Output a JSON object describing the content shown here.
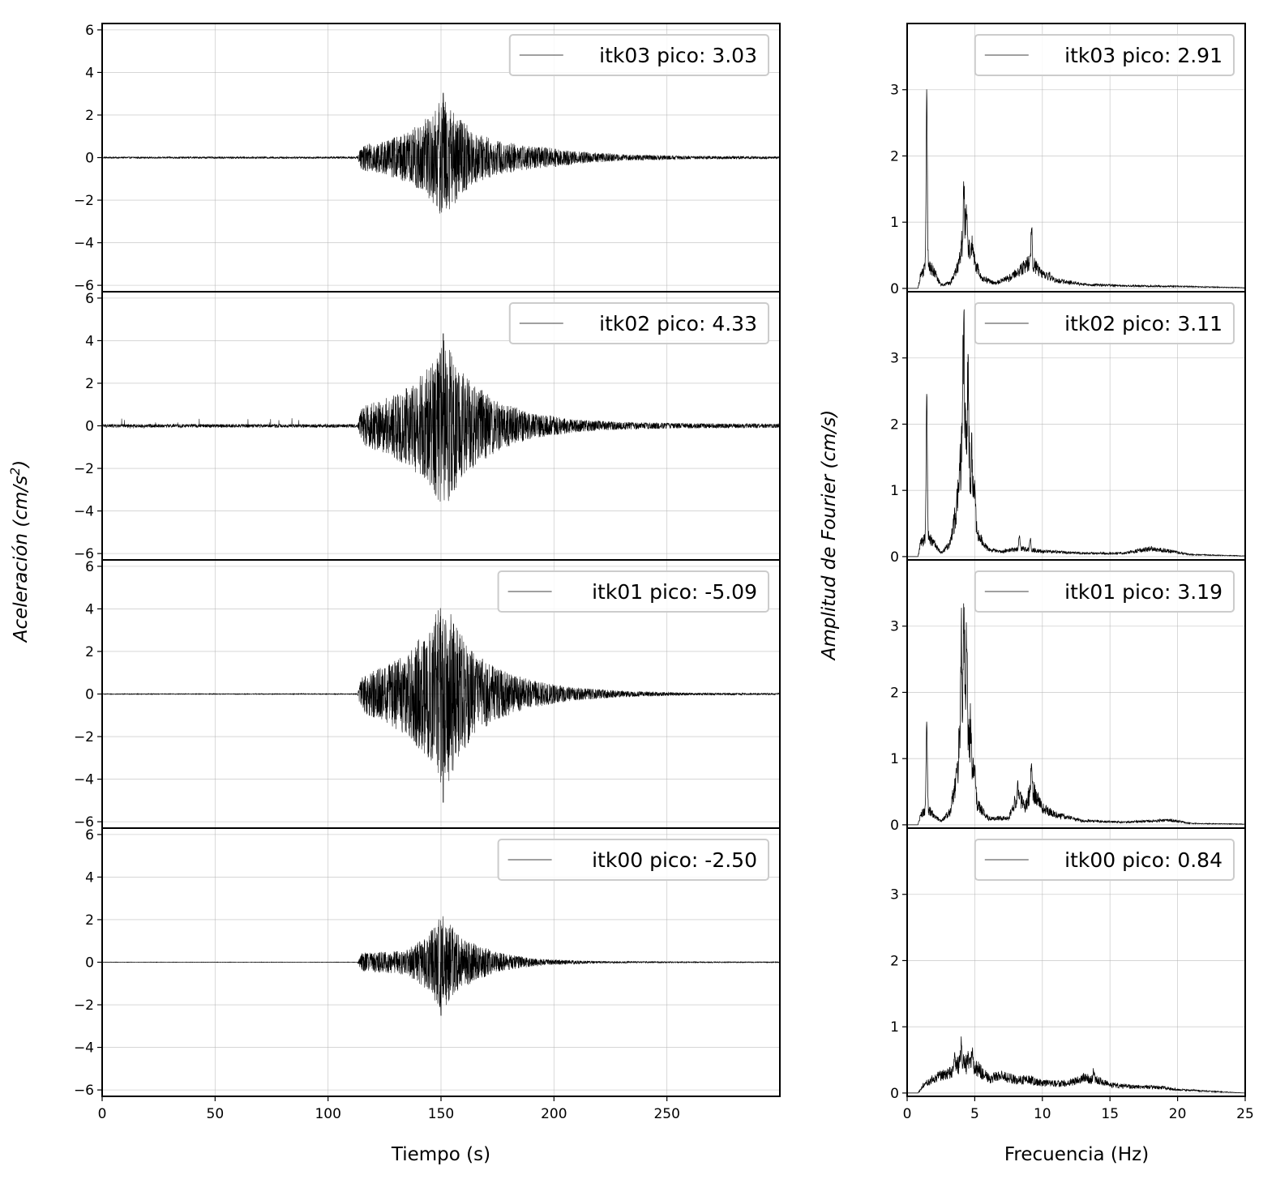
{
  "chart_data": [
    {
      "type": "line",
      "panel": "left",
      "xlabel": "Tiempo (s)",
      "ylabel_prefix": "Aceleración (cm/s",
      "ylabel_sup": "2",
      "ylabel_suffix": ")",
      "xlim": [
        0,
        300
      ],
      "ylim": [
        -6.3,
        6.3
      ],
      "xticks": [
        0,
        50,
        100,
        150,
        200,
        250
      ],
      "xtick_labels": [
        "0",
        "50",
        "100",
        "150",
        "200",
        "250"
      ],
      "yticks": [
        -6,
        -4,
        -2,
        0,
        2,
        4,
        6
      ],
      "ytick_labels": [
        "−6",
        "−4",
        "−2",
        "0",
        "2",
        "4",
        "6"
      ],
      "grid": true,
      "series": [
        {
          "name": "itk03",
          "legend": "itk03 pico: 3.03",
          "peak": 3.03,
          "onset_s": 115,
          "peak_time_s": 151,
          "coda_end_s": 300,
          "envelope": [
            [
              0,
              0.04
            ],
            [
              113,
              0.05
            ],
            [
              115,
              0.6
            ],
            [
              125,
              0.8
            ],
            [
              135,
              1.2
            ],
            [
              145,
              2.0
            ],
            [
              151,
              2.9
            ],
            [
              158,
              1.9
            ],
            [
              165,
              1.2
            ],
            [
              175,
              0.8
            ],
            [
              190,
              0.55
            ],
            [
              200,
              0.45
            ],
            [
              210,
              0.3
            ],
            [
              230,
              0.15
            ],
            [
              260,
              0.08
            ],
            [
              300,
              0.06
            ]
          ]
        },
        {
          "name": "itk02",
          "legend": "itk02 pico: 4.33",
          "peak": 4.33,
          "onset_s": 115,
          "peak_time_s": 151,
          "coda_end_s": 300,
          "envelope": [
            [
              0,
              0.08
            ],
            [
              113,
              0.08
            ],
            [
              115,
              0.9
            ],
            [
              125,
              1.3
            ],
            [
              135,
              1.9
            ],
            [
              145,
              2.8
            ],
            [
              151,
              4.2
            ],
            [
              158,
              2.7
            ],
            [
              165,
              1.9
            ],
            [
              175,
              1.2
            ],
            [
              190,
              0.6
            ],
            [
              200,
              0.45
            ],
            [
              210,
              0.3
            ],
            [
              230,
              0.18
            ],
            [
              260,
              0.12
            ],
            [
              300,
              0.1
            ]
          ]
        },
        {
          "name": "itk01",
          "legend": "itk01 pico: -5.09",
          "peak": -5.09,
          "onset_s": 115,
          "peak_time_s": 151,
          "coda_end_s": 300,
          "envelope": [
            [
              0,
              0.02
            ],
            [
              113,
              0.02
            ],
            [
              115,
              0.9
            ],
            [
              125,
              1.3
            ],
            [
              135,
              2.0
            ],
            [
              145,
              3.1
            ],
            [
              151,
              4.7
            ],
            [
              158,
              3.0
            ],
            [
              165,
              1.9
            ],
            [
              175,
              1.2
            ],
            [
              190,
              0.65
            ],
            [
              200,
              0.45
            ],
            [
              210,
              0.3
            ],
            [
              230,
              0.15
            ],
            [
              260,
              0.06
            ],
            [
              300,
              0.04
            ]
          ]
        },
        {
          "name": "itk00",
          "legend": "itk00 pico: -2.50",
          "peak": -2.5,
          "onset_s": 115,
          "peak_time_s": 150,
          "coda_end_s": 300,
          "envelope": [
            [
              0,
              0.01
            ],
            [
              113,
              0.01
            ],
            [
              115,
              0.45
            ],
            [
              125,
              0.5
            ],
            [
              135,
              0.6
            ],
            [
              145,
              1.4
            ],
            [
              150,
              2.3
            ],
            [
              158,
              1.3
            ],
            [
              165,
              0.9
            ],
            [
              175,
              0.45
            ],
            [
              190,
              0.2
            ],
            [
              200,
              0.12
            ],
            [
              220,
              0.05
            ],
            [
              260,
              0.03
            ],
            [
              300,
              0.02
            ]
          ]
        }
      ]
    },
    {
      "type": "line",
      "panel": "right",
      "xlabel": "Frecuencia (Hz)",
      "ylabel": "Amplitud de Fourier (cm/s)",
      "xlim": [
        0,
        25
      ],
      "ylim": [
        -0.05,
        4.0
      ],
      "xticks": [
        0,
        5,
        10,
        15,
        20,
        25
      ],
      "xtick_labels": [
        "0",
        "5",
        "10",
        "15",
        "20",
        "25"
      ],
      "yticks": [
        0,
        1,
        2,
        3
      ],
      "ytick_labels": [
        "0",
        "1",
        "2",
        "3"
      ],
      "grid": true,
      "series": [
        {
          "name": "itk03",
          "legend": "itk03 pico: 2.91",
          "peak": 2.91,
          "base": [
            [
              0,
              0
            ],
            [
              0.8,
              0.0
            ],
            [
              1.0,
              0.2
            ],
            [
              1.5,
              0.35
            ],
            [
              2.0,
              0.25
            ],
            [
              2.5,
              0.05
            ],
            [
              3.2,
              0.08
            ],
            [
              3.8,
              0.35
            ],
            [
              4.2,
              0.9
            ],
            [
              4.8,
              0.5
            ],
            [
              5.5,
              0.15
            ],
            [
              6.5,
              0.08
            ],
            [
              7.5,
              0.15
            ],
            [
              8.5,
              0.3
            ],
            [
              9.2,
              0.4
            ],
            [
              10,
              0.2
            ],
            [
              11,
              0.12
            ],
            [
              13,
              0.06
            ],
            [
              16,
              0.04
            ],
            [
              20,
              0.03
            ],
            [
              25,
              0.01
            ]
          ],
          "peaks": [
            {
              "f": 1.45,
              "a": 2.91
            },
            {
              "f": 4.2,
              "a": 1.48
            },
            {
              "f": 4.4,
              "a": 1.25
            },
            {
              "f": 4.8,
              "a": 0.65
            },
            {
              "f": 9.2,
              "a": 0.94
            },
            {
              "f": 10.5,
              "a": 0.25
            }
          ]
        },
        {
          "name": "itk02",
          "legend": "itk02 pico: 3.11",
          "peak": 3.11,
          "base": [
            [
              0,
              0
            ],
            [
              0.8,
              0.0
            ],
            [
              1.0,
              0.2
            ],
            [
              1.5,
              0.3
            ],
            [
              2.0,
              0.2
            ],
            [
              2.5,
              0.05
            ],
            [
              3.2,
              0.2
            ],
            [
              3.7,
              0.8
            ],
            [
              4.2,
              2.0
            ],
            [
              4.7,
              1.2
            ],
            [
              5.2,
              0.35
            ],
            [
              6,
              0.1
            ],
            [
              7,
              0.08
            ],
            [
              8.5,
              0.12
            ],
            [
              10,
              0.08
            ],
            [
              13,
              0.05
            ],
            [
              16,
              0.05
            ],
            [
              18,
              0.12
            ],
            [
              19.5,
              0.08
            ],
            [
              21,
              0.03
            ],
            [
              25,
              0.01
            ]
          ],
          "peaks": [
            {
              "f": 1.45,
              "a": 2.44
            },
            {
              "f": 4.1,
              "a": 2.6
            },
            {
              "f": 4.2,
              "a": 3.11
            },
            {
              "f": 4.5,
              "a": 2.8
            },
            {
              "f": 4.8,
              "a": 1.6
            },
            {
              "f": 5.0,
              "a": 1.1
            },
            {
              "f": 8.3,
              "a": 0.32
            },
            {
              "f": 9.1,
              "a": 0.28
            }
          ]
        },
        {
          "name": "itk01",
          "legend": "itk01 pico: 3.19",
          "peak": 3.19,
          "base": [
            [
              0,
              0
            ],
            [
              0.8,
              0.0
            ],
            [
              1.0,
              0.15
            ],
            [
              1.5,
              0.25
            ],
            [
              2.0,
              0.15
            ],
            [
              2.5,
              0.05
            ],
            [
              3.2,
              0.2
            ],
            [
              3.7,
              0.8
            ],
            [
              4.2,
              2.0
            ],
            [
              4.7,
              1.0
            ],
            [
              5.2,
              0.3
            ],
            [
              6,
              0.1
            ],
            [
              7.5,
              0.1
            ],
            [
              8.2,
              0.45
            ],
            [
              8.7,
              0.25
            ],
            [
              9.2,
              0.55
            ],
            [
              10,
              0.25
            ],
            [
              11,
              0.15
            ],
            [
              13,
              0.06
            ],
            [
              16,
              0.04
            ],
            [
              19.5,
              0.07
            ],
            [
              21,
              0.02
            ],
            [
              25,
              0.01
            ]
          ],
          "peaks": [
            {
              "f": 1.45,
              "a": 1.6
            },
            {
              "f": 4.0,
              "a": 2.8
            },
            {
              "f": 4.2,
              "a": 3.19
            },
            {
              "f": 4.4,
              "a": 2.75
            },
            {
              "f": 4.7,
              "a": 1.5
            },
            {
              "f": 5.0,
              "a": 0.95
            },
            {
              "f": 8.2,
              "a": 0.58
            },
            {
              "f": 9.2,
              "a": 1.08
            }
          ]
        },
        {
          "name": "itk00",
          "legend": "itk00 pico: 0.84",
          "peak": 0.84,
          "base": [
            [
              0,
              0
            ],
            [
              0.8,
              0.0
            ],
            [
              1.2,
              0.12
            ],
            [
              2.0,
              0.22
            ],
            [
              3.0,
              0.3
            ],
            [
              4.0,
              0.45
            ],
            [
              5.0,
              0.4
            ],
            [
              6.0,
              0.22
            ],
            [
              7.0,
              0.25
            ],
            [
              8.0,
              0.2
            ],
            [
              9.0,
              0.2
            ],
            [
              10,
              0.15
            ],
            [
              11,
              0.14
            ],
            [
              12,
              0.15
            ],
            [
              13,
              0.22
            ],
            [
              14,
              0.2
            ],
            [
              15,
              0.12
            ],
            [
              17,
              0.09
            ],
            [
              19,
              0.08
            ],
            [
              20,
              0.05
            ],
            [
              22,
              0.03
            ],
            [
              25,
              0.0
            ]
          ],
          "peaks": [
            {
              "f": 4.0,
              "a": 0.84
            },
            {
              "f": 4.5,
              "a": 0.62
            },
            {
              "f": 4.8,
              "a": 0.63
            },
            {
              "f": 3.5,
              "a": 0.55
            },
            {
              "f": 13.8,
              "a": 0.34
            }
          ]
        }
      ]
    }
  ]
}
